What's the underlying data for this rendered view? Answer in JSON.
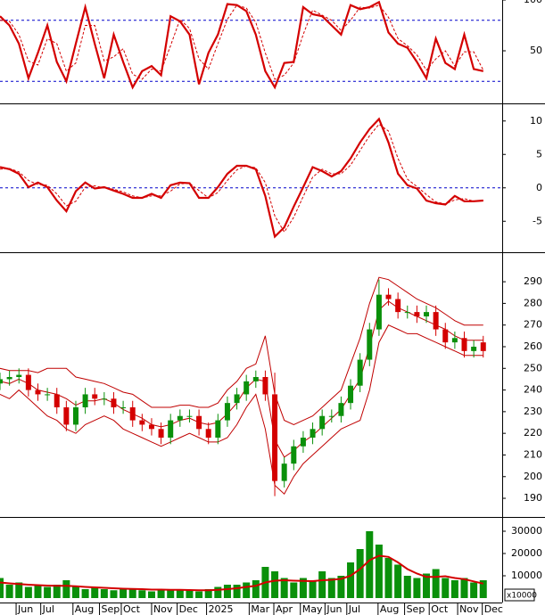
{
  "chart_data": [
    {
      "type": "line",
      "xlim": [
        0,
        53
      ],
      "ylim": [
        0,
        100
      ],
      "yticks": [
        50,
        100
      ],
      "levels": [
        80,
        20
      ],
      "level_color": "#0000cc",
      "series": [
        {
          "color": "#d40000",
          "dashed": false,
          "values": [
            84,
            75,
            57,
            23,
            48,
            75,
            39,
            20,
            57,
            93,
            57,
            23,
            66,
            39,
            14,
            30,
            35,
            26,
            84,
            79,
            66,
            17,
            48,
            66,
            96,
            95,
            89,
            66,
            30,
            14,
            38,
            39,
            93,
            86,
            84,
            75,
            66,
            95,
            91,
            93,
            98,
            68,
            57,
            53,
            39,
            23,
            62,
            38,
            32,
            66,
            32,
            30
          ]
        },
        {
          "color": "#d40000",
          "dashed": true,
          "values": [
            80,
            79,
            66,
            40,
            36,
            62,
            57,
            30,
            38,
            75,
            75,
            40,
            44,
            52,
            27,
            22,
            32,
            30,
            55,
            81,
            72,
            42,
            32,
            57,
            81,
            95,
            92,
            78,
            48,
            22,
            26,
            38,
            66,
            90,
            85,
            80,
            70,
            80,
            93,
            92,
            95,
            83,
            62,
            55,
            46,
            31,
            42,
            50,
            35,
            49,
            49,
            31
          ]
        }
      ]
    },
    {
      "type": "line",
      "xlim": [
        0,
        53
      ],
      "ylim": [
        -9.5,
        12.1
      ],
      "yticks": [
        10,
        5,
        0,
        -5
      ],
      "levels": [
        0
      ],
      "level_color": "#0000cc",
      "series": [
        {
          "color": "#d40000",
          "dashed": false,
          "values": [
            3.1,
            2.8,
            2.1,
            0.1,
            0.8,
            0.1,
            -1.9,
            -3.5,
            -0.5,
            0.8,
            -0.1,
            0.1,
            -0.4,
            -0.9,
            -1.5,
            -1.5,
            -0.9,
            -1.5,
            0.4,
            0.8,
            0.7,
            -1.5,
            -1.5,
            0.1,
            2.1,
            3.3,
            3.3,
            2.8,
            -1.2,
            -7.3,
            -5.9,
            -2.8,
            0.1,
            3.1,
            2.5,
            1.7,
            2.5,
            4.4,
            6.8,
            8.8,
            10.3,
            6.8,
            2.1,
            0.4,
            -0.1,
            -1.9,
            -2.3,
            -2.5,
            -1.2,
            -2.0,
            -2.0,
            -1.9
          ]
        },
        {
          "color": "#d40000",
          "dashed": true,
          "values": [
            2.8,
            2.9,
            2.4,
            1.1,
            0.5,
            0.4,
            -0.9,
            -2.7,
            -2.0,
            0.1,
            0.3,
            0.0,
            -0.2,
            -0.6,
            -1.2,
            -1.5,
            -1.2,
            -1.2,
            -0.5,
            0.6,
            0.7,
            -0.4,
            -1.5,
            -0.7,
            1.1,
            2.7,
            3.3,
            3.0,
            0.8,
            -4.2,
            -6.6,
            -4.4,
            -1.3,
            1.6,
            2.8,
            2.1,
            2.1,
            3.4,
            5.6,
            7.8,
            9.5,
            8.5,
            4.4,
            1.3,
            0.2,
            -1.0,
            -2.1,
            -2.4,
            -1.8,
            -1.6,
            -2.0,
            -1.9
          ]
        }
      ]
    },
    {
      "type": "candlestick",
      "xlim": [
        0,
        53
      ],
      "ylim": [
        182.2,
        302.8
      ],
      "yticks": [
        190,
        200,
        210,
        220,
        230,
        240,
        250,
        260,
        270,
        280,
        290
      ],
      "up_color": "#0a900a",
      "down_color": "#d40000",
      "open": [
        243,
        245,
        246,
        247,
        240,
        238,
        238,
        232,
        224,
        232,
        238,
        236,
        236,
        232,
        232,
        226,
        224,
        222,
        218,
        226,
        228,
        228,
        222,
        218,
        226,
        234,
        238,
        244,
        246,
        238,
        198,
        206,
        214,
        218,
        222,
        228,
        228,
        234,
        242,
        254,
        268,
        284,
        282,
        276,
        276,
        274,
        276,
        268,
        262,
        264,
        258,
        262
      ],
      "high": [
        248,
        249,
        250,
        250,
        243,
        241,
        241,
        235,
        235,
        241,
        241,
        239,
        239,
        235,
        235,
        229,
        227,
        225,
        229,
        231,
        231,
        231,
        225,
        229,
        237,
        241,
        247,
        249,
        249,
        248,
        209,
        217,
        221,
        225,
        231,
        231,
        237,
        245,
        257,
        271,
        291,
        287,
        285,
        279,
        279,
        279,
        279,
        271,
        267,
        267,
        263,
        265
      ],
      "low": [
        240,
        242,
        243,
        237,
        235,
        235,
        229,
        221,
        221,
        229,
        233,
        233,
        229,
        229,
        223,
        221,
        219,
        215,
        215,
        223,
        225,
        219,
        215,
        215,
        223,
        231,
        235,
        241,
        235,
        191,
        195,
        203,
        211,
        215,
        219,
        225,
        225,
        231,
        239,
        251,
        265,
        279,
        273,
        273,
        271,
        271,
        265,
        259,
        259,
        255,
        255,
        255
      ],
      "close": [
        245,
        246,
        247,
        240,
        238,
        238,
        232,
        224,
        232,
        238,
        236,
        236,
        232,
        232,
        226,
        224,
        222,
        218,
        226,
        228,
        228,
        222,
        218,
        226,
        234,
        238,
        244,
        246,
        238,
        198,
        206,
        214,
        218,
        222,
        228,
        228,
        234,
        242,
        254,
        268,
        284,
        282,
        276,
        276,
        274,
        276,
        268,
        262,
        264,
        258,
        260,
        258
      ],
      "bands": [
        {
          "color": "#c00000",
          "values": [
            250,
            249,
            249,
            249,
            248,
            250,
            250,
            250,
            246,
            245,
            244,
            243,
            241,
            239,
            238,
            235,
            232,
            232,
            232,
            233,
            233,
            232,
            232,
            234,
            240,
            244,
            250,
            252,
            265,
            238,
            226,
            224,
            226,
            228,
            232,
            236,
            240,
            252,
            264,
            280,
            292,
            291,
            288,
            285,
            282,
            280,
            278,
            275,
            272,
            270,
            270,
            270
          ]
        },
        {
          "color": "#c00000",
          "values": [
            244,
            243,
            245,
            243,
            240,
            239,
            238,
            236,
            233,
            235,
            235,
            236,
            234,
            231,
            229,
            227,
            224,
            223,
            224,
            226,
            227,
            225,
            224,
            225,
            229,
            234,
            241,
            245,
            244,
            217,
            209,
            212,
            216,
            219,
            223,
            227,
            231,
            238,
            245,
            260,
            277,
            281,
            278,
            276,
            274,
            272,
            270,
            268,
            265,
            263,
            263,
            263
          ]
        },
        {
          "color": "#c00000",
          "values": [
            238,
            236,
            240,
            236,
            232,
            228,
            226,
            222,
            220,
            224,
            226,
            228,
            226,
            222,
            220,
            218,
            216,
            214,
            216,
            218,
            220,
            218,
            216,
            216,
            218,
            224,
            232,
            238,
            222,
            196,
            192,
            200,
            206,
            210,
            214,
            218,
            222,
            224,
            226,
            240,
            262,
            270,
            268,
            266,
            266,
            264,
            262,
            260,
            258,
            256,
            256,
            256
          ]
        }
      ]
    },
    {
      "type": "bar",
      "xlim": [
        0,
        53
      ],
      "ylim": [
        -7600,
        35600
      ],
      "yticks": [
        10000,
        20000,
        30000
      ],
      "scale_note": "x10000",
      "xticks": [
        {
          "value": 1.7,
          "label": "Jun"
        },
        {
          "value": 4.3,
          "label": "Jul"
        },
        {
          "value": 7.7,
          "label": "Aug"
        },
        {
          "value": 10.5,
          "label": "Sep"
        },
        {
          "value": 12.8,
          "label": "Oct"
        },
        {
          "value": 16,
          "label": "Nov"
        },
        {
          "value": 18.7,
          "label": "Dec"
        },
        {
          "value": 21.8,
          "label": "2025"
        },
        {
          "value": 26.3,
          "label": "Mar"
        },
        {
          "value": 28.9,
          "label": "Apr"
        },
        {
          "value": 31.7,
          "label": "May"
        },
        {
          "value": 34.3,
          "label": "Jun"
        },
        {
          "value": 36.6,
          "label": "Jul"
        },
        {
          "value": 39.9,
          "label": "Aug"
        },
        {
          "value": 42.7,
          "label": "Sep"
        },
        {
          "value": 45.3,
          "label": "Oct"
        },
        {
          "value": 48.3,
          "label": "Nov"
        },
        {
          "value": 50.9,
          "label": "Dec"
        }
      ],
      "series": [
        {
          "kind": "bar",
          "color": "#0a900a",
          "values": [
            9000,
            6000,
            7000,
            5000,
            6000,
            5000,
            6000,
            8000,
            5000,
            4000,
            5000,
            4000,
            3500,
            4000,
            4000,
            3500,
            3000,
            4000,
            3500,
            4000,
            3500,
            3000,
            4000,
            5000,
            6000,
            6000,
            7000,
            8000,
            14000,
            12000,
            9000,
            7000,
            9000,
            8000,
            12000,
            9000,
            10000,
            16000,
            22000,
            30000,
            24000,
            18000,
            15000,
            10000,
            9000,
            11000,
            13000,
            9000,
            8000,
            9000,
            7000,
            8000
          ]
        },
        {
          "kind": "line",
          "color": "#d40000",
          "values": [
            7000,
            6600,
            6300,
            6000,
            5800,
            5600,
            5500,
            5500,
            5300,
            5000,
            4800,
            4600,
            4400,
            4200,
            4100,
            4000,
            3800,
            3800,
            3700,
            3700,
            3600,
            3500,
            3500,
            3700,
            4000,
            4400,
            5000,
            5500,
            7000,
            7800,
            8000,
            7800,
            7700,
            7600,
            8000,
            8200,
            8600,
            10000,
            13000,
            17000,
            19000,
            18500,
            16000,
            13000,
            11000,
            9500,
            9500,
            9800,
            9000,
            8500,
            7500,
            6500
          ]
        }
      ]
    }
  ]
}
